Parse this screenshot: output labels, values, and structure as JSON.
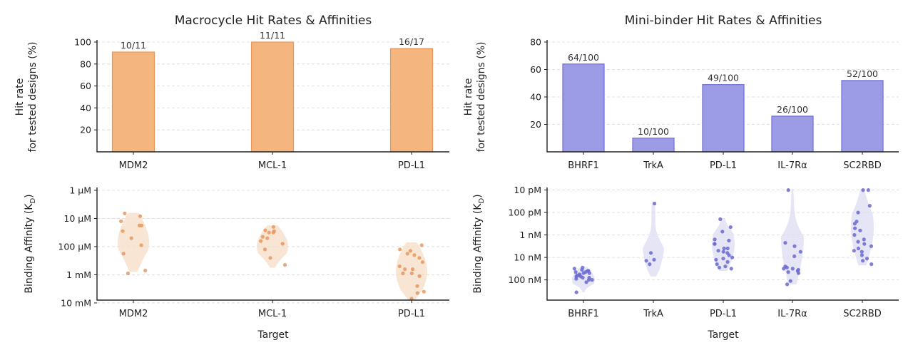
{
  "colors": {
    "macro_bar": "#f5b57f",
    "macro_bar_edge": "#e9965a",
    "macro_point": "#e8985e",
    "macro_violin": "#f7dcc4",
    "mini_bar": "#9b9be6",
    "mini_bar_edge": "#6e6ed8",
    "mini_point": "#6a6ad0",
    "mini_violin": "#dcdcf3"
  },
  "chart_data": [
    {
      "type": "bar",
      "title": "Macrocycle Hit Rates & Affinities",
      "ylabel_line1": "Hit rate",
      "ylabel_line2": "for tested designs (%)",
      "categories": [
        "MDM2",
        "MCL-1",
        "PD-L1"
      ],
      "values": [
        90.9,
        100,
        94.1
      ],
      "data_labels": [
        "10/11",
        "11/11",
        "16/17"
      ],
      "ylim": [
        0,
        100
      ],
      "yticks": [
        20,
        40,
        60,
        80,
        100
      ],
      "grid": true
    },
    {
      "type": "bar",
      "title": "Mini-binder Hit Rates & Affinities",
      "ylabel_line1": "Hit rate",
      "ylabel_line2": "for tested designs (%)",
      "categories": [
        "BHRF1",
        "TrkA",
        "PD-L1",
        "IL-7Rα",
        "SC2RBD"
      ],
      "values": [
        64,
        10,
        49,
        26,
        52
      ],
      "data_labels": [
        "64/100",
        "10/100",
        "49/100",
        "26/100",
        "52/100"
      ],
      "ylim": [
        0,
        80
      ],
      "yticks": [
        20,
        40,
        60,
        80
      ],
      "grid": true
    },
    {
      "type": "scatter",
      "subtype": "violin-strip",
      "ylabel": "Binding Affinity (K",
      "ylabel_sub": "D",
      "ylabel_end": ")",
      "xlabel": "Target",
      "log_scale": true,
      "y_unit": "M",
      "ytick_values": [
        -6,
        -5,
        -4,
        -3,
        -2
      ],
      "ytick_labels": [
        "1 μM",
        "10 μM",
        "100 μM",
        "1 mM",
        "10 mM"
      ],
      "ylim_log10": [
        -6.05,
        -2.1
      ],
      "categories": [
        "MDM2",
        "MCL-1",
        "PD-L1"
      ],
      "series": [
        {
          "values_log10": [
            -4.75,
            -4.55,
            -4.3,
            -4.75,
            -5.18,
            -4.05,
            -3.75,
            -3.15,
            -3.05,
            -5.08,
            -4.9
          ],
          "violin_range": [
            -5.2,
            -3.1
          ]
        },
        {
          "values_log10": [
            -4.55,
            -4.5,
            -4.3,
            -4.7,
            -4.35,
            -4.2,
            -4.1,
            -3.9,
            -3.6,
            -3.35,
            -4.58,
            -4.5
          ],
          "violin_range": [
            -4.75,
            -3.25
          ]
        },
        {
          "values_log10": [
            -3.85,
            -3.75,
            -4.05,
            -3.9,
            -3.6,
            -3.3,
            -3.2,
            -3.2,
            -3.05,
            -2.95,
            -2.6,
            -2.4,
            -2.15,
            -2.35,
            -3.05,
            -3.7,
            -3.45
          ]
        },
        {
          "violin_range_note": "per-category spreads above"
        }
      ],
      "violin_ranges": [
        [
          -5.2,
          -3.1
        ],
        [
          -4.75,
          -3.25
        ],
        [
          -4.15,
          -2.1
        ]
      ],
      "grid": true
    },
    {
      "type": "scatter",
      "subtype": "violin-strip",
      "ylabel": "Binding Affinity (K",
      "ylabel_sub": "D",
      "ylabel_end": ")",
      "xlabel": "Target",
      "log_scale": true,
      "y_unit": "M",
      "ytick_values": [
        -11,
        -10,
        -9,
        -8,
        -7
      ],
      "ytick_labels": [
        "10 pM",
        "100 pM",
        "1 nM",
        "10 nM",
        "100 nM"
      ],
      "ylim_log10": [
        -11.05,
        -6.1
      ],
      "categories": [
        "BHRF1",
        "TrkA",
        "PD-L1",
        "IL-7Rα",
        "SC2RBD"
      ],
      "series": [
        {
          "values_log10": [
            -7.4,
            -7.35,
            -7.45,
            -7.3,
            -7.2,
            -7.1,
            -7.15,
            -7.0,
            -7.25,
            -7.4,
            -7.5,
            -7.2,
            -6.9,
            -7.3,
            -7.05,
            -7.15,
            -7.35,
            -7.55,
            -7.1,
            -6.45,
            -7.0
          ]
        },
        {
          "values_log10": [
            -10.4,
            -8.2,
            -7.7,
            -7.9,
            -7.85
          ]
        },
        {
          "values_log10": [
            -9.15,
            -9.7,
            -9.35,
            -8.8,
            -8.75,
            -8.6,
            -8.4,
            -8.3,
            -8.25,
            -8.1,
            -8.2,
            -8.0,
            -7.95,
            -7.8,
            -7.7,
            -7.6,
            -7.5,
            -7.55,
            -8.4,
            -8.6,
            -7.9
          ]
        },
        {
          "values_log10": [
            -11.0,
            -8.25,
            -8.5,
            -8.65,
            -7.55,
            -7.45,
            -7.4,
            -7.5,
            -7.6,
            -7.35,
            -7.3,
            -6.8,
            -6.95,
            -8.05,
            -7.5
          ]
        },
        {
          "values_log10": [
            -11.0,
            -11.0,
            -10.3,
            -10.0,
            -9.6,
            -9.5,
            -9.2,
            -9.0,
            -8.8,
            -8.7,
            -8.5,
            -8.4,
            -8.25,
            -8.1,
            -7.95,
            -7.85,
            -7.7,
            -8.6,
            -9.3,
            -8.3
          ]
        }
      ],
      "violin_ranges": [
        [
          -7.55,
          -6.45
        ],
        [
          -10.45,
          -7.15
        ],
        [
          -9.75,
          -7.4
        ],
        [
          -11.05,
          -6.8
        ],
        [
          -11.05,
          -7.65
        ]
      ],
      "grid": true
    }
  ]
}
